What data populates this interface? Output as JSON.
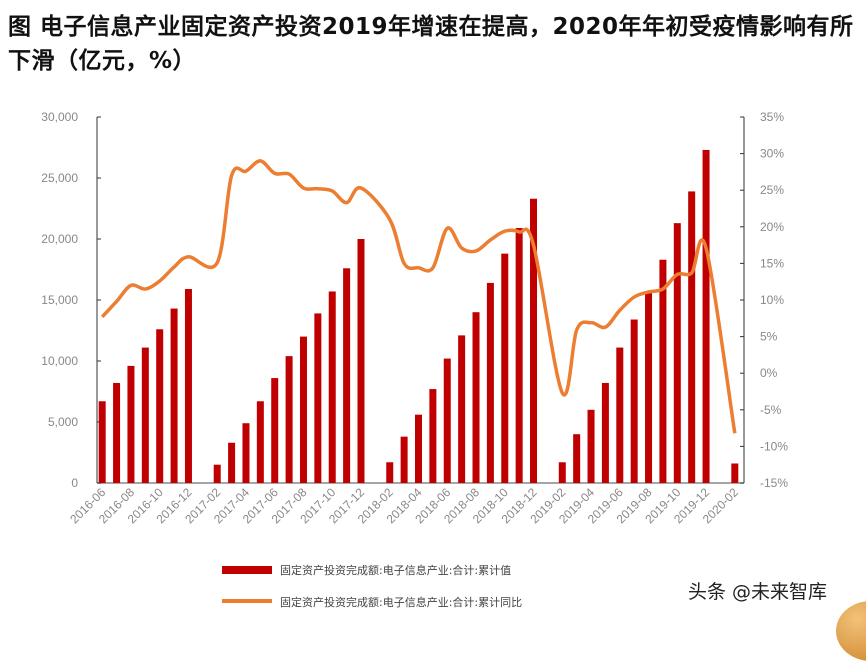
{
  "title": "图  电子信息产业固定资产投资2019年增速在提高，2020年年初受疫情影响有所下滑（亿元，%）",
  "watermark": "头条 @未来智库",
  "colors": {
    "bar": "#c00000",
    "line": "#ed7d31"
  },
  "chart_data": {
    "type": "bar+line",
    "title": "图  电子信息产业固定资产投资2019年增速在提高，2020年年初受疫情影响有所下滑（亿元，%）",
    "categories": [
      "2016-06",
      "2016-07",
      "2016-08",
      "2016-09",
      "2016-10",
      "2016-11",
      "2016-12",
      "2017-01",
      "2017-02",
      "2017-03",
      "2017-04",
      "2017-05",
      "2017-06",
      "2017-07",
      "2017-08",
      "2017-09",
      "2017-10",
      "2017-11",
      "2017-12",
      "2018-01",
      "2018-02",
      "2018-03",
      "2018-04",
      "2018-05",
      "2018-06",
      "2018-07",
      "2018-08",
      "2018-09",
      "2018-10",
      "2018-11",
      "2018-12",
      "2019-01",
      "2019-02",
      "2019-03",
      "2019-04",
      "2019-05",
      "2019-06",
      "2019-07",
      "2019-08",
      "2019-09",
      "2019-10",
      "2019-11",
      "2019-12",
      "2020-01",
      "2020-02"
    ],
    "x_tick_labels": [
      "2016-06",
      "2016-08",
      "2016-10",
      "2016-12",
      "2017-02",
      "2017-04",
      "2017-06",
      "2017-08",
      "2017-10",
      "2017-12",
      "2018-02",
      "2018-04",
      "2018-06",
      "2018-08",
      "2018-10",
      "2018-12",
      "2019-02",
      "2019-04",
      "2019-06",
      "2019-08",
      "2019-10",
      "2019-12",
      "2020-02"
    ],
    "left_axis": {
      "ylim": [
        0,
        30000
      ],
      "ticks": [
        "0",
        "5,000",
        "10,000",
        "15,000",
        "20,000",
        "25,000",
        "30,000"
      ]
    },
    "right_axis": {
      "ylim": [
        -15,
        35
      ],
      "ticks": [
        "-15%",
        "-10%",
        "-5%",
        "0%",
        "5%",
        "10%",
        "15%",
        "20%",
        "25%",
        "30%",
        "35%"
      ]
    },
    "grid": false,
    "legend_position": "bottom",
    "series": [
      {
        "name": "固定资产投资完成额:电子信息产业:合计:累计值",
        "type": "bar",
        "axis": "left",
        "values": [
          6700,
          8200,
          9600,
          11100,
          12600,
          14300,
          15900,
          null,
          1500,
          3300,
          4900,
          6700,
          8600,
          10400,
          12000,
          13900,
          15700,
          17600,
          20000,
          null,
          1700,
          3800,
          5600,
          7700,
          10200,
          12100,
          14000,
          16400,
          18800,
          20900,
          23300,
          null,
          1700,
          4000,
          6000,
          8200,
          11100,
          13400,
          15600,
          18300,
          21300,
          23900,
          27300,
          null,
          1600
        ]
      },
      {
        "name": "固定资产投资完成额:电子信息产业:合计:累计同比",
        "type": "line",
        "axis": "right",
        "values": [
          7.7,
          9.8,
          12.0,
          11.5,
          12.6,
          14.5,
          15.9,
          null,
          15.1,
          27.0,
          27.6,
          29.0,
          27.3,
          27.2,
          25.3,
          25.2,
          24.9,
          23.3,
          25.3,
          null,
          21.0,
          15.0,
          14.4,
          14.4,
          19.8,
          17.1,
          16.7,
          18.2,
          19.4,
          19.3,
          17.5,
          null,
          -2.7,
          5.9,
          6.9,
          6.3,
          8.6,
          10.4,
          11.1,
          11.5,
          13.5,
          13.7,
          17.1,
          null,
          -8.2
        ]
      }
    ]
  }
}
